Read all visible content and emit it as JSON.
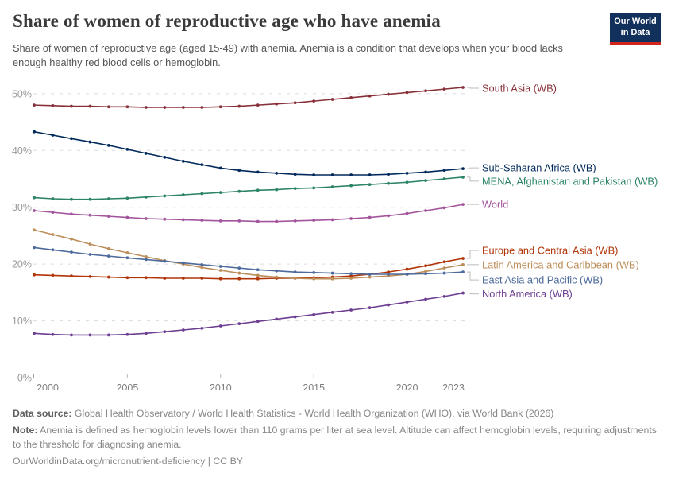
{
  "header": {
    "title": "Share of women of reproductive age who have anemia",
    "subtitle": "Share of women of reproductive age (aged 15-49) with anemia. Anemia is a condition that develops when your blood lacks enough healthy red blood cells or hemoglobin.",
    "logo": {
      "line1": "Our World",
      "line2": "in Data",
      "bg_color": "#12305C",
      "stripe_color": "#D1261C"
    }
  },
  "chart_data": {
    "type": "line",
    "title": "Share of women of reproductive age who have anemia",
    "ylabel": "",
    "xlabel": "",
    "unit": "%",
    "grid": "horizontal-dashed",
    "legend_position": "right-line-labels",
    "ylim": [
      0,
      53
    ],
    "yticks": [
      0,
      10,
      20,
      30,
      40,
      50
    ],
    "xticks": [
      2000,
      2005,
      2010,
      2015,
      2020,
      2023
    ],
    "x": [
      2000,
      2001,
      2002,
      2003,
      2004,
      2005,
      2006,
      2007,
      2008,
      2009,
      2010,
      2011,
      2012,
      2013,
      2014,
      2015,
      2016,
      2017,
      2018,
      2019,
      2020,
      2021,
      2022,
      2023
    ],
    "series": [
      {
        "id": "south-asia",
        "name": "South Asia (WB)",
        "color": "#883039",
        "label_dy": 1,
        "values": [
          48.0,
          47.9,
          47.8,
          47.8,
          47.7,
          47.7,
          47.6,
          47.6,
          47.6,
          47.6,
          47.7,
          47.8,
          48.0,
          48.2,
          48.4,
          48.7,
          49.0,
          49.3,
          49.6,
          49.9,
          50.2,
          50.5,
          50.8,
          51.1
        ]
      },
      {
        "id": "sub-saharan-africa",
        "name": "Sub-Saharan Africa (WB)",
        "color": "#00295B",
        "label_dy": -1,
        "values": [
          43.3,
          42.7,
          42.1,
          41.5,
          40.9,
          40.2,
          39.5,
          38.8,
          38.1,
          37.5,
          36.9,
          36.5,
          36.2,
          36.0,
          35.8,
          35.7,
          35.7,
          35.7,
          35.7,
          35.8,
          36.0,
          36.2,
          36.5,
          36.8
        ]
      },
      {
        "id": "mena-afghanistan-pakistan",
        "name": "MENA, Afghanistan and Pakistan (WB)",
        "color": "#2C8465",
        "label_dy": 5,
        "values": [
          31.7,
          31.5,
          31.4,
          31.4,
          31.5,
          31.6,
          31.8,
          32.0,
          32.2,
          32.4,
          32.6,
          32.8,
          33.0,
          33.1,
          33.3,
          33.4,
          33.6,
          33.8,
          34.0,
          34.2,
          34.4,
          34.7,
          35.0,
          35.3
        ]
      },
      {
        "id": "world",
        "name": "World",
        "color": "#A2559C",
        "label_dy": 0,
        "values": [
          29.4,
          29.1,
          28.8,
          28.6,
          28.4,
          28.2,
          28.0,
          27.9,
          27.8,
          27.7,
          27.6,
          27.6,
          27.5,
          27.5,
          27.6,
          27.7,
          27.8,
          28.0,
          28.2,
          28.5,
          28.9,
          29.4,
          29.9,
          30.5
        ]
      },
      {
        "id": "europe-central-asia",
        "name": "Europe and Central Asia (WB)",
        "color": "#B13507",
        "label_dy": -10,
        "values": [
          18.1,
          18.0,
          17.9,
          17.8,
          17.7,
          17.6,
          17.6,
          17.5,
          17.5,
          17.5,
          17.4,
          17.4,
          17.4,
          17.5,
          17.5,
          17.6,
          17.7,
          17.9,
          18.2,
          18.6,
          19.1,
          19.7,
          20.4,
          21.0
        ]
      },
      {
        "id": "latin-america-caribbean",
        "name": "Latin America and Caribbean (WB)",
        "color": "#BC8E5A",
        "label_dy": 0,
        "values": [
          26.0,
          25.2,
          24.4,
          23.5,
          22.7,
          22.0,
          21.3,
          20.6,
          20.0,
          19.4,
          18.9,
          18.4,
          18.0,
          17.7,
          17.5,
          17.4,
          17.4,
          17.5,
          17.7,
          17.9,
          18.2,
          18.7,
          19.3,
          19.9
        ]
      },
      {
        "id": "east-asia-pacific",
        "name": "East Asia and Pacific (WB)",
        "color": "#4C6A9C",
        "label_dy": 10,
        "values": [
          22.9,
          22.5,
          22.1,
          21.7,
          21.4,
          21.1,
          20.8,
          20.5,
          20.2,
          19.9,
          19.6,
          19.3,
          19.0,
          18.8,
          18.6,
          18.5,
          18.4,
          18.3,
          18.2,
          18.2,
          18.2,
          18.3,
          18.4,
          18.6
        ]
      },
      {
        "id": "north-america",
        "name": "North America (WB)",
        "color": "#6D3E91",
        "label_dy": 1,
        "values": [
          7.8,
          7.6,
          7.5,
          7.5,
          7.5,
          7.6,
          7.8,
          8.1,
          8.4,
          8.7,
          9.1,
          9.5,
          9.9,
          10.3,
          10.7,
          11.1,
          11.5,
          11.9,
          12.3,
          12.8,
          13.3,
          13.8,
          14.3,
          14.9
        ]
      }
    ]
  },
  "footer": {
    "data_source_label": "Data source:",
    "data_source_text": " Global Health Observatory / World Health Statistics - World Health Organization (WHO), via World Bank (2026)",
    "note_label": "Note:",
    "note_text": " Anemia is defined as hemoglobin levels lower than 110 grams per liter at sea level. Altitude can affect hemoglobin levels, requiring adjustments to the threshold for diagnosing anemia.",
    "credit": "OurWorldinData.org/micronutrient-deficiency | CC BY"
  }
}
